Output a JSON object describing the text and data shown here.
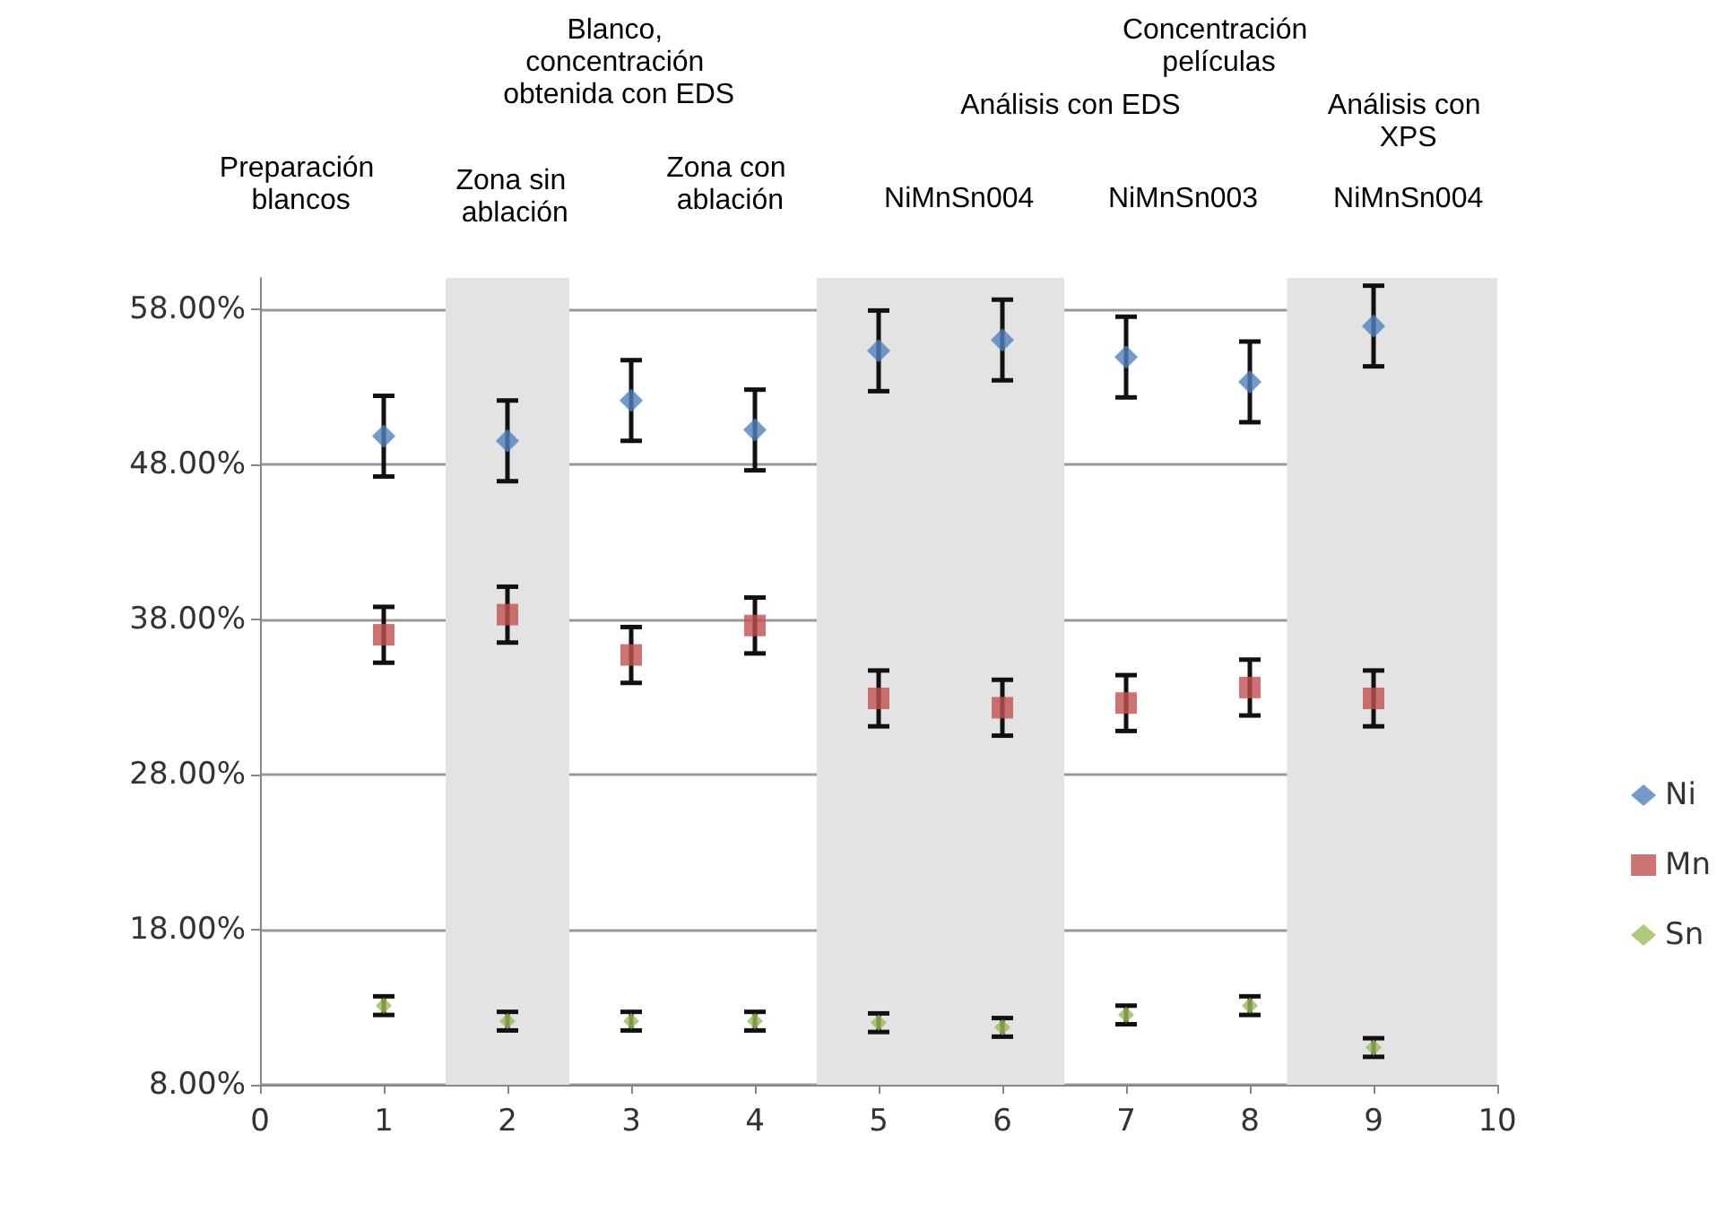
{
  "chart_data": {
    "type": "scatter",
    "x": [
      1,
      2,
      3,
      4,
      5,
      6,
      7,
      8,
      9
    ],
    "series": [
      {
        "name": "Ni",
        "color": "#4f81bd",
        "marker": "diamond",
        "values": [
          49.8,
          49.5,
          52.1,
          50.2,
          55.3,
          56.0,
          54.9,
          53.3,
          56.9
        ],
        "errors": [
          2.6,
          2.6,
          2.6,
          2.6,
          2.6,
          2.6,
          2.6,
          2.6,
          2.6
        ]
      },
      {
        "name": "Mn",
        "color": "#c0504d",
        "marker": "square",
        "values": [
          37.0,
          38.3,
          35.7,
          37.6,
          32.9,
          32.3,
          32.6,
          33.6,
          32.9
        ],
        "errors": [
          1.8,
          1.8,
          1.8,
          1.8,
          1.8,
          1.8,
          1.8,
          1.8,
          1.8
        ]
      },
      {
        "name": "Sn",
        "color": "#9bbb59",
        "marker": "diamond",
        "values": [
          13.1,
          12.1,
          12.1,
          12.1,
          12.0,
          11.7,
          12.5,
          13.1,
          10.4
        ],
        "errors": [
          0.6,
          0.6,
          0.6,
          0.6,
          0.6,
          0.6,
          0.6,
          0.6,
          0.6
        ]
      }
    ],
    "xlim": [
      0,
      10
    ],
    "xticks": [
      0,
      1,
      2,
      3,
      4,
      5,
      6,
      7,
      8,
      9,
      10
    ],
    "ylim": [
      8,
      60
    ],
    "yticks": [
      {
        "value": 8,
        "label": "8.00%"
      },
      {
        "value": 18,
        "label": "18.00%"
      },
      {
        "value": 28,
        "label": "28.00%"
      },
      {
        "value": 38,
        "label": "38.00%"
      },
      {
        "value": 48,
        "label": "48.00%"
      },
      {
        "value": 58,
        "label": "58.00%"
      }
    ],
    "grid": "y",
    "legend": "right",
    "bands": [
      {
        "axis": "x",
        "from": 1.5,
        "to": 2.5,
        "color": "#e3e3e3"
      },
      {
        "axis": "x",
        "from": 4.5,
        "to": 6.5,
        "color": "#e3e3e3"
      },
      {
        "axis": "x",
        "from": 8.3,
        "to": 10,
        "color": "#e3e3e3"
      }
    ],
    "annotations": [
      "Preparación blancos",
      "Blanco, concentración obtenida con EDS",
      "Zona sin ablación",
      "Zona con ablación",
      "Concentración películas",
      "Análisis con EDS",
      "NiMnSn004",
      "NiMnSn003",
      "Análisis con XPS",
      "NiMnSn004"
    ]
  }
}
